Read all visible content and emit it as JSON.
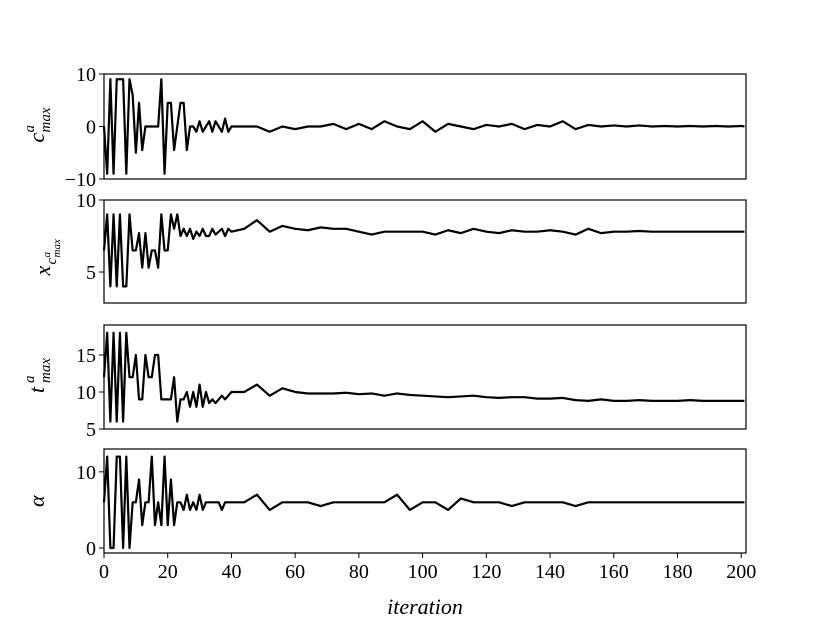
{
  "chart_data": {
    "type": "line",
    "color": "#000000",
    "xlabel": "iteration",
    "xlim": [
      0,
      201.5
    ],
    "xticks": [
      0,
      20,
      40,
      60,
      80,
      100,
      120,
      140,
      160,
      180,
      200
    ],
    "x": [
      0,
      1,
      2,
      3,
      4,
      5,
      6,
      7,
      8,
      9,
      10,
      11,
      12,
      13,
      14,
      15,
      16,
      17,
      18,
      19,
      20,
      21,
      22,
      23,
      24,
      25,
      26,
      27,
      28,
      29,
      30,
      31,
      32,
      33,
      34,
      35,
      36,
      37,
      38,
      39,
      40,
      44,
      48,
      52,
      56,
      60,
      64,
      68,
      72,
      76,
      80,
      84,
      88,
      92,
      96,
      100,
      104,
      108,
      112,
      116,
      120,
      124,
      128,
      132,
      136,
      140,
      144,
      148,
      152,
      156,
      160,
      164,
      168,
      172,
      176,
      180,
      184,
      188,
      192,
      196,
      200,
      201
    ],
    "panels": [
      {
        "ylabel": {
          "base": "c",
          "sup": "a",
          "sub": "max"
        },
        "ylim": [
          -10,
          10
        ],
        "yticks": [
          {
            "value": -10,
            "label": "−10"
          },
          0,
          10
        ],
        "values": [
          0,
          -9,
          9,
          -9,
          9,
          9,
          9,
          -9,
          9,
          6,
          -5,
          4.5,
          -4.5,
          0,
          0,
          0,
          0,
          0,
          9,
          -9,
          4.5,
          4.5,
          -4.5,
          0,
          4.5,
          4.5,
          -4.5,
          0,
          0,
          -1,
          1,
          -1,
          0,
          1,
          -1,
          1,
          0,
          -1,
          1.5,
          -1,
          0,
          0,
          0,
          -1,
          0,
          -0.5,
          0,
          0,
          0.5,
          -0.5,
          0.5,
          -0.5,
          1,
          0,
          -0.5,
          1,
          -1,
          0.5,
          0,
          -0.5,
          0.3,
          0,
          0.5,
          -0.5,
          0.3,
          0,
          1,
          -0.5,
          0.3,
          0,
          0.2,
          0,
          0.2,
          0,
          0.1,
          0,
          0.1,
          0,
          0.1,
          0,
          0.1,
          0
        ]
      },
      {
        "ylabel": {
          "base": "x",
          "sub": "c",
          "subsup": "a",
          "subsub": "max"
        },
        "ylim": [
          2.85,
          10
        ],
        "yticks": [
          5,
          10
        ],
        "values": [
          6.5,
          9,
          4,
          9,
          4,
          9,
          4,
          4,
          9,
          6.5,
          6.5,
          7.7,
          5.3,
          7.7,
          5.3,
          6.5,
          6.5,
          5.3,
          9,
          6.5,
          6.5,
          9,
          8,
          9,
          7.5,
          8,
          7.5,
          8,
          7.3,
          7.8,
          7.5,
          8,
          7.5,
          7.5,
          8,
          7.6,
          7.8,
          8,
          7.5,
          8,
          7.8,
          8,
          8.6,
          7.8,
          8.2,
          8,
          7.9,
          8.1,
          8,
          8,
          7.8,
          7.6,
          7.8,
          7.8,
          7.8,
          7.8,
          7.6,
          7.9,
          7.7,
          8,
          7.8,
          7.7,
          7.9,
          7.8,
          7.8,
          7.9,
          7.8,
          7.6,
          8,
          7.7,
          7.8,
          7.8,
          7.85,
          7.8,
          7.8,
          7.8,
          7.8,
          7.8,
          7.8,
          7.8,
          7.8,
          7.8
        ]
      },
      {
        "ylabel": {
          "base": "t",
          "sup": "a",
          "sub": "max"
        },
        "ylim": [
          5,
          19.05
        ],
        "yticks": [
          5,
          10,
          15
        ],
        "values": [
          12,
          18,
          6,
          18,
          6,
          18,
          6,
          18,
          12,
          12,
          15,
          9,
          9,
          15,
          12,
          12,
          15,
          15,
          9,
          9,
          9,
          9,
          12,
          6,
          9,
          9,
          10,
          8,
          10,
          8,
          11,
          8,
          10,
          8.5,
          9,
          8.5,
          9,
          9.5,
          9,
          9.5,
          10,
          10,
          11,
          9.5,
          10.5,
          10,
          9.8,
          9.8,
          9.8,
          9.9,
          9.7,
          9.8,
          9.5,
          9.8,
          9.6,
          9.5,
          9.4,
          9.3,
          9.4,
          9.5,
          9.3,
          9.2,
          9.3,
          9.3,
          9.1,
          9.1,
          9.2,
          8.9,
          8.8,
          9,
          8.8,
          8.8,
          8.9,
          8.8,
          8.8,
          8.8,
          8.9,
          8.8,
          8.8,
          8.8,
          8.8,
          8.8
        ]
      },
      {
        "ylabel": {
          "base": "α"
        },
        "ylim": [
          -0.66,
          13
        ],
        "yticks": [
          0,
          10
        ],
        "values": [
          6,
          12,
          0,
          0,
          12,
          12,
          0,
          12,
          0,
          6,
          6,
          9,
          3,
          6,
          6,
          12,
          3,
          6,
          3,
          12,
          3,
          9,
          3,
          6,
          6,
          5,
          7,
          5,
          6,
          5,
          7,
          5,
          6,
          6,
          6,
          6,
          6,
          5,
          6,
          6,
          6,
          6,
          7,
          5,
          6,
          6,
          6,
          5.5,
          6,
          6,
          6,
          6,
          6,
          7,
          5,
          6,
          6,
          5,
          6.5,
          6,
          6,
          6,
          5.5,
          6,
          6,
          6,
          6,
          5.5,
          6,
          6,
          6,
          6,
          6,
          6,
          6,
          6,
          6,
          6,
          6,
          6,
          6,
          6
        ]
      }
    ]
  }
}
